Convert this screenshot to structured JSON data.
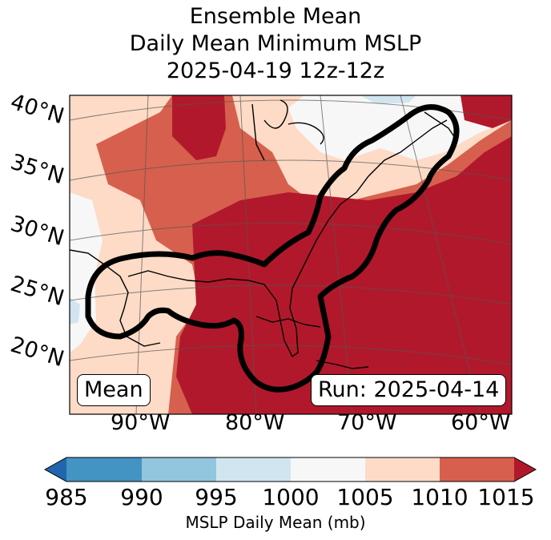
{
  "title": {
    "line1": "Ensemble Mean",
    "line2": "Daily Mean Minimum MSLP",
    "line3": "2025-04-19 12z-12z"
  },
  "map": {
    "lat_labels": [
      "40°N",
      "35°N",
      "30°N",
      "25°N",
      "20°N"
    ],
    "lon_labels": [
      "90°W",
      "80°W",
      "70°W",
      "60°W"
    ],
    "stat_box": "Mean",
    "run_box": "Run: 2025-04-14",
    "contour_color": "#000000",
    "fill_colors": {
      "1005_1010": "#fddbc7",
      "1010_1015": "#d6604d",
      "over_1015": "#b2182b",
      "1000_1005": "#f7f7f7",
      "995_1000": "#d1e5f0"
    }
  },
  "colorbar": {
    "ticks": [
      "985",
      "990",
      "995",
      "1000",
      "1005",
      "1010",
      "1015"
    ],
    "label": "MSLP Daily Mean (mb)",
    "colors": [
      "#2166ac",
      "#4393c3",
      "#92c5de",
      "#d1e5f0",
      "#f7f7f7",
      "#fddbc7",
      "#d6604d",
      "#b2182b"
    ]
  }
}
